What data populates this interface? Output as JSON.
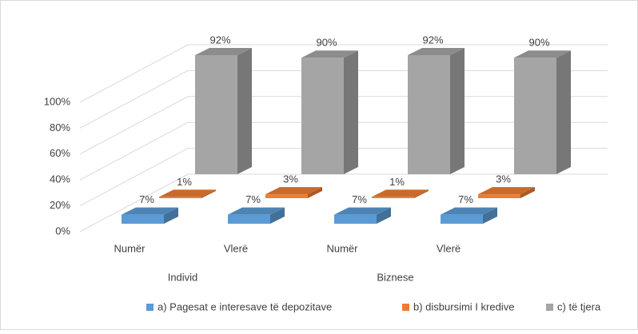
{
  "chart_data": {
    "type": "bar3d",
    "categories": [
      "Numër",
      "Vlerë",
      "Numër",
      "Vlerë"
    ],
    "group_labels": [
      "Individ",
      "Biznese"
    ],
    "series": [
      {
        "name": "a) Pagesat e interesave të depozitave",
        "color": "#5b9bd5",
        "values": [
          7,
          7,
          7,
          7
        ],
        "value_labels": [
          "7%",
          "7%",
          "7%",
          "7%"
        ]
      },
      {
        "name": "b) disbursimi I kredive",
        "color": "#ed7d31",
        "values": [
          1,
          3,
          1,
          3
        ],
        "value_labels": [
          "1%",
          "3%",
          "1%",
          "3%"
        ]
      },
      {
        "name": "c) të tjera",
        "color": "#a5a5a5",
        "values": [
          92,
          90,
          92,
          90
        ],
        "value_labels": [
          "92%",
          "90%",
          "92%",
          "90%"
        ]
      }
    ],
    "ylim": [
      0,
      100
    ],
    "yticks": [
      {
        "value": 0,
        "label": "0%"
      },
      {
        "value": 20,
        "label": "20%"
      },
      {
        "value": 40,
        "label": "40%"
      },
      {
        "value": 60,
        "label": "60%"
      },
      {
        "value": 80,
        "label": "80%"
      },
      {
        "value": 100,
        "label": "100%"
      }
    ],
    "grid": true,
    "legend": "bottom"
  }
}
